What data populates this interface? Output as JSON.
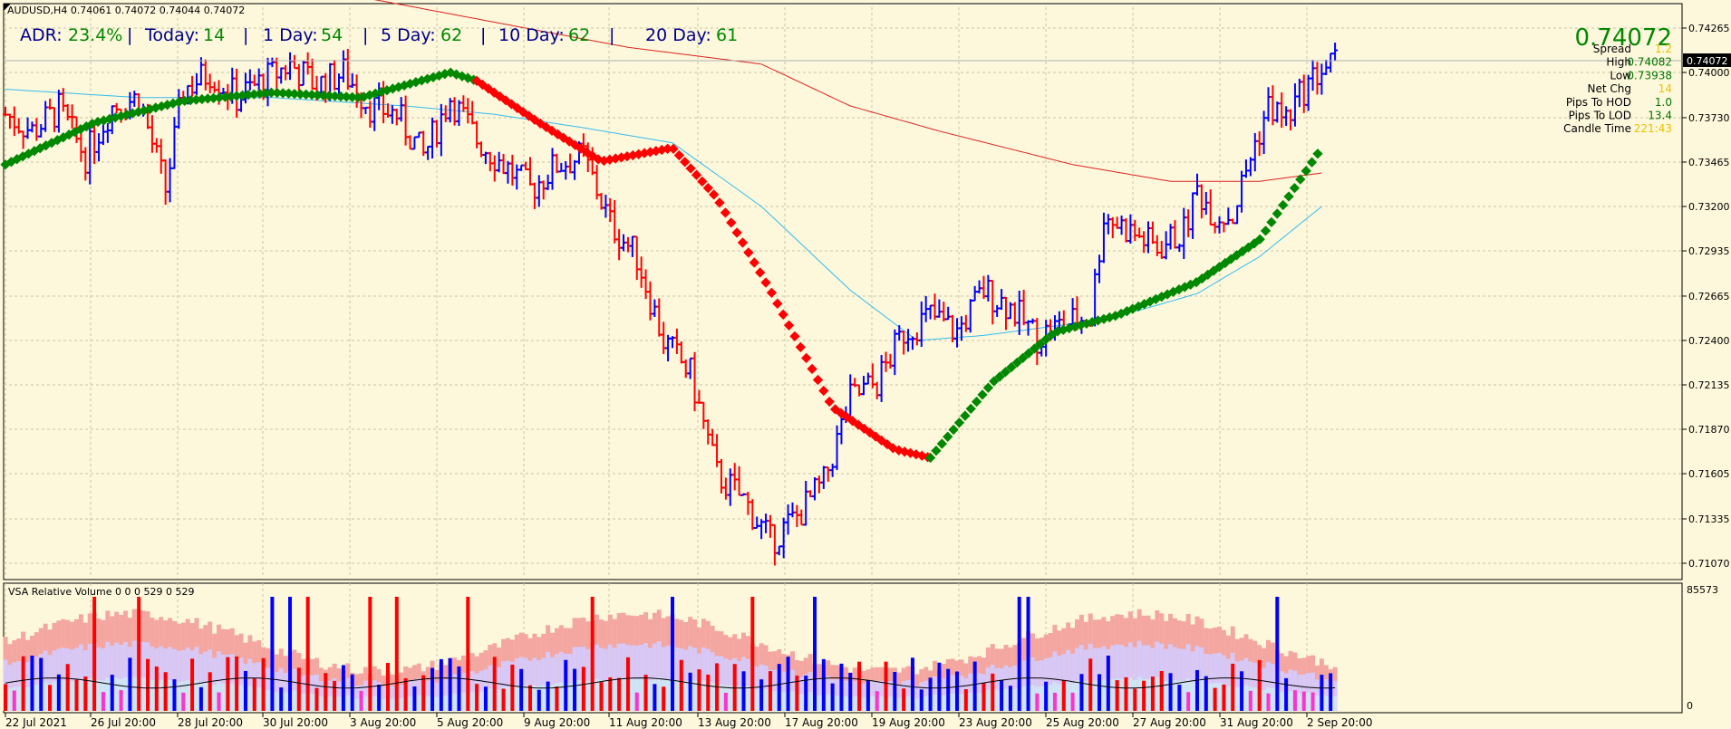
{
  "header": {
    "symbol_line": "AUDUSD,H4  0.74061 0.74072 0.74044 0.74072"
  },
  "adr": {
    "adr_label": "ADR:",
    "adr_value": "23.4%",
    "today_label": "Today:",
    "today_value": "14",
    "day1_label": "1 Day:",
    "day1_value": "54",
    "day5_label": "5 Day:",
    "day5_value": "62",
    "day10_label": "10 Day:",
    "day10_value": "62",
    "day20_label": "20 Day:",
    "day20_value": "61",
    "sep": "|"
  },
  "info_panel": {
    "price": "0.74072",
    "rows": [
      {
        "label": "Spread",
        "value": "1.2",
        "color": "#e8c000"
      },
      {
        "label": "High",
        "value": "0.74082",
        "color": "#007700"
      },
      {
        "label": "Low",
        "value": "0.73938",
        "color": "#007700"
      },
      {
        "label": "Net Chg",
        "value": "14",
        "color": "#e8c000"
      },
      {
        "label": "Pips To HOD",
        "value": "1.0",
        "color": "#007700"
      },
      {
        "label": "Pips To LOD",
        "value": "13.4",
        "color": "#007700"
      },
      {
        "label": "Candle Time",
        "value": "221:43",
        "color": "#e8c000"
      }
    ]
  },
  "price_axis": {
    "current_label": "0.74072",
    "ticks": [
      "0.74265",
      "0.74000",
      "0.73730",
      "0.73465",
      "0.73200",
      "0.72935",
      "0.72665",
      "0.72400",
      "0.72135",
      "0.71870",
      "0.71605",
      "0.71335",
      "0.71070"
    ]
  },
  "volume_panel": {
    "title": "VSA Relative Volume 0 0 0 529 0 529",
    "axis_top": "85573",
    "axis_bottom": "0"
  },
  "time_axis": {
    "labels": [
      "22 Jul 2021",
      "26 Jul 20:00",
      "28 Jul 20:00",
      "30 Jul 20:00",
      "3 Aug 20:00",
      "5 Aug 20:00",
      "9 Aug 20:00",
      "11 Aug 20:00",
      "13 Aug 20:00",
      "17 Aug 20:00",
      "19 Aug 20:00",
      "23 Aug 20:00",
      "25 Aug 20:00",
      "27 Aug 20:00",
      "31 Aug 20:00",
      "2 Sep 20:00"
    ]
  },
  "colors": {
    "background": "#fdf8dc",
    "bull_bar": "#0000ff",
    "bear_bar": "#ff0000",
    "ma_slow": "#dd2222",
    "ma_fast": "#33bbee",
    "trend_up": "#008800",
    "trend_down": "#ff0000",
    "grid": "#c8c3a0"
  },
  "chart_data": {
    "type": "line",
    "symbol": "AUDUSD",
    "timeframe": "H4",
    "ylim": [
      0.71,
      0.7435
    ],
    "grid": true,
    "close_path": [
      [
        0,
        0.7375
      ],
      [
        6,
        0.7365
      ],
      [
        12,
        0.7378
      ],
      [
        18,
        0.735
      ],
      [
        24,
        0.738
      ],
      [
        30,
        0.7385
      ],
      [
        36,
        0.733
      ],
      [
        40,
        0.739
      ],
      [
        46,
        0.74
      ],
      [
        52,
        0.7385
      ],
      [
        58,
        0.7395
      ],
      [
        64,
        0.7405
      ],
      [
        70,
        0.7392
      ],
      [
        76,
        0.74
      ],
      [
        82,
        0.738
      ],
      [
        88,
        0.7375
      ],
      [
        94,
        0.735
      ],
      [
        100,
        0.7385
      ],
      [
        106,
        0.736
      ],
      [
        112,
        0.7345
      ],
      [
        118,
        0.733
      ],
      [
        124,
        0.7345
      ],
      [
        130,
        0.735
      ],
      [
        136,
        0.731
      ],
      [
        142,
        0.729
      ],
      [
        148,
        0.724
      ],
      [
        154,
        0.722
      ],
      [
        160,
        0.716
      ],
      [
        166,
        0.7145
      ],
      [
        172,
        0.712
      ],
      [
        178,
        0.7135
      ],
      [
        184,
        0.7155
      ],
      [
        190,
        0.7205
      ],
      [
        196,
        0.7215
      ],
      [
        202,
        0.7245
      ],
      [
        208,
        0.7255
      ],
      [
        214,
        0.7245
      ],
      [
        220,
        0.727
      ],
      [
        226,
        0.726
      ],
      [
        232,
        0.7242
      ],
      [
        238,
        0.725
      ],
      [
        244,
        0.7255
      ],
      [
        247,
        0.7315
      ],
      [
        253,
        0.7305
      ],
      [
        259,
        0.7295
      ],
      [
        265,
        0.7305
      ],
      [
        268,
        0.733
      ],
      [
        272,
        0.7315
      ],
      [
        276,
        0.7315
      ],
      [
        280,
        0.735
      ],
      [
        284,
        0.738
      ],
      [
        288,
        0.7372
      ],
      [
        292,
        0.739
      ],
      [
        296,
        0.7402
      ],
      [
        300,
        0.7407
      ]
    ],
    "trend_line_up": [
      [
        0,
        0.7345
      ],
      [
        20,
        0.737
      ],
      [
        40,
        0.7383
      ],
      [
        60,
        0.7388
      ],
      [
        80,
        0.7385
      ],
      [
        100,
        0.74
      ],
      [
        106,
        0.7395
      ]
    ],
    "trend_line_down": [
      [
        106,
        0.7395
      ],
      [
        120,
        0.737
      ],
      [
        134,
        0.7347
      ],
      [
        150,
        0.7355
      ],
      [
        160,
        0.7325
      ],
      [
        172,
        0.727
      ],
      [
        186,
        0.72
      ],
      [
        200,
        0.7175
      ],
      [
        208,
        0.717
      ]
    ],
    "trend_line_up2": [
      [
        208,
        0.717
      ],
      [
        222,
        0.7215
      ],
      [
        236,
        0.7245
      ],
      [
        250,
        0.7255
      ],
      [
        268,
        0.7275
      ],
      [
        282,
        0.73
      ],
      [
        296,
        0.7355
      ]
    ],
    "ma_slow": [
      [
        80,
        0.7445
      ],
      [
        110,
        0.743
      ],
      [
        140,
        0.7415
      ],
      [
        170,
        0.7405
      ],
      [
        190,
        0.738
      ],
      [
        210,
        0.7365
      ],
      [
        240,
        0.7345
      ],
      [
        262,
        0.7335
      ],
      [
        282,
        0.7335
      ],
      [
        296,
        0.734
      ]
    ],
    "ma_fast": [
      [
        0,
        0.739
      ],
      [
        30,
        0.7385
      ],
      [
        60,
        0.7385
      ],
      [
        90,
        0.738
      ],
      [
        110,
        0.7375
      ],
      [
        130,
        0.7367
      ],
      [
        150,
        0.7358
      ],
      [
        170,
        0.732
      ],
      [
        190,
        0.727
      ],
      [
        205,
        0.724
      ],
      [
        220,
        0.7243
      ],
      [
        240,
        0.725
      ],
      [
        255,
        0.7258
      ],
      [
        268,
        0.7268
      ],
      [
        282,
        0.729
      ],
      [
        296,
        0.732
      ]
    ],
    "volume": {
      "count": 300,
      "max": 85573
    }
  }
}
